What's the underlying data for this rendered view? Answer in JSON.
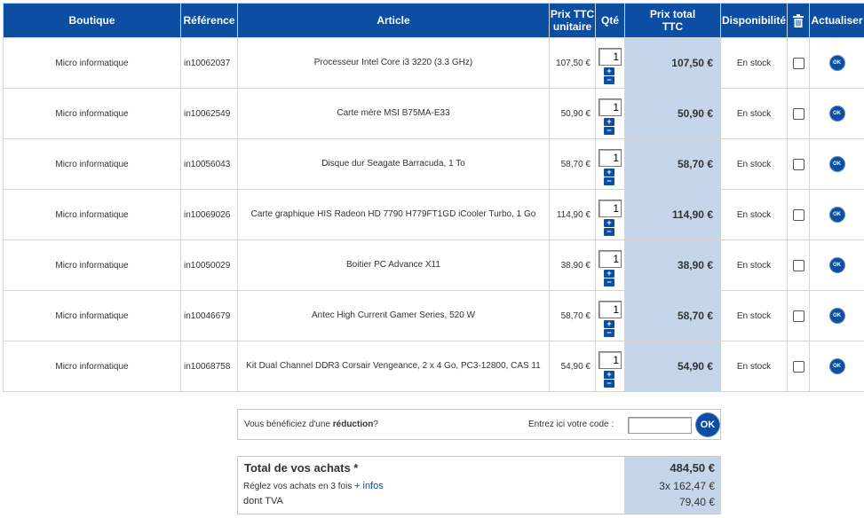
{
  "header": {
    "boutique": "Boutique",
    "reference": "Référence",
    "article": "Article",
    "prix_unitaire_line1": "Prix TTC",
    "prix_unitaire_line2": "unitaire",
    "qte": "Qté",
    "prix_total_line1": "Prix total",
    "prix_total_line2": "TTC",
    "disponibilite": "Disponibilité",
    "actualiser": "Actualiser"
  },
  "rows": [
    {
      "boutique": "Micro informatique",
      "reference": "in10062037",
      "article": "Processeur Intel Core i3 3220 (3.3 GHz)",
      "unit_price": "107,50 €",
      "qty": "1",
      "total": "107,50 €",
      "availability": "En stock"
    },
    {
      "boutique": "Micro informatique",
      "reference": "in10062549",
      "article": "Carte mère MSI B75MA-E33",
      "unit_price": "50,90 €",
      "qty": "1",
      "total": "50,90 €",
      "availability": "En stock"
    },
    {
      "boutique": "Micro informatique",
      "reference": "in10056043",
      "article": "Disque dur Seagate Barracuda, 1 To",
      "unit_price": "58,70 €",
      "qty": "1",
      "total": "58,70 €",
      "availability": "En stock"
    },
    {
      "boutique": "Micro informatique",
      "reference": "in10069026",
      "article": "Carte graphique HIS Radeon HD 7790 H779FT1GD iCooler Turbo, 1 Go",
      "unit_price": "114,90 €",
      "qty": "1",
      "total": "114,90 €",
      "availability": "En stock"
    },
    {
      "boutique": "Micro informatique",
      "reference": "in10050029",
      "article": "Boitier PC Advance X11",
      "unit_price": "38,90 €",
      "qty": "1",
      "total": "38,90 €",
      "availability": "En stock"
    },
    {
      "boutique": "Micro informatique",
      "reference": "in10046679",
      "article": "Antec High Current Gamer Series, 520 W",
      "unit_price": "58,70 €",
      "qty": "1",
      "total": "58,70 €",
      "availability": "En stock"
    },
    {
      "boutique": "Micro informatique",
      "reference": "in10068758",
      "article": "Kit Dual Channel DDR3 Corsair Vengeance, 2 x 4 Go, PC3-12800, CAS 11",
      "unit_price": "54,90 €",
      "qty": "1",
      "total": "54,90 €",
      "availability": "En stock"
    }
  ],
  "controls": {
    "plus": "+",
    "minus": "−",
    "ok": "OK"
  },
  "promo": {
    "text_before": "Vous bénéficiez d'une ",
    "text_bold": "réduction",
    "text_after": "?",
    "code_label": "Entrez ici votre code :",
    "code_value": "",
    "ok_label": "OK"
  },
  "totals": {
    "total_label": "Total de vos achats *",
    "total_value": "484,50 €",
    "installments_label": "Réglez vos achats en 3 fois",
    "installments_link": "+ infos",
    "installments_value": "3x  162,47 €",
    "tva_label": "dont TVA",
    "tva_value": "79,40 €"
  },
  "colors": {
    "header_bg": "#0c4ea1",
    "total_column_bg": "#c5d6ea",
    "button_blue": "#0c4ea1"
  },
  "icons": {
    "trash": "trash-icon",
    "ok": "ok-button-icon"
  }
}
